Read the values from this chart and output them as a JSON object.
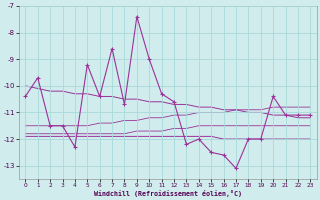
{
  "background_color": "#d0ecec",
  "grid_color": "#a8d8d8",
  "line_color": "#993399",
  "x_data": [
    0,
    1,
    2,
    3,
    4,
    5,
    6,
    7,
    8,
    9,
    10,
    11,
    12,
    13,
    14,
    15,
    16,
    17,
    18,
    19,
    20,
    21,
    22,
    23
  ],
  "y_main": [
    -10.4,
    -9.7,
    -11.5,
    -11.5,
    -12.3,
    -9.2,
    -10.4,
    -8.6,
    -10.7,
    -7.4,
    -9.0,
    -10.3,
    -10.6,
    -12.2,
    -12.0,
    -12.5,
    -12.6,
    -13.1,
    -12.0,
    -12.0,
    -10.4,
    -11.1,
    -11.1,
    -11.1
  ],
  "y_trend1": [
    -10.0,
    -10.1,
    -10.2,
    -10.2,
    -10.3,
    -10.3,
    -10.4,
    -10.4,
    -10.5,
    -10.5,
    -10.6,
    -10.6,
    -10.7,
    -10.7,
    -10.8,
    -10.8,
    -10.9,
    -10.9,
    -11.0,
    -11.0,
    -11.1,
    -11.1,
    -11.2,
    -11.2
  ],
  "y_trend2": [
    -11.9,
    -11.9,
    -11.9,
    -11.9,
    -11.9,
    -11.9,
    -11.9,
    -11.9,
    -11.9,
    -11.9,
    -11.9,
    -11.9,
    -11.9,
    -11.9,
    -11.9,
    -11.9,
    -12.0,
    -12.0,
    -12.0,
    -12.0,
    -12.0,
    -12.0,
    -12.0,
    -12.0
  ],
  "y_band1": [
    -11.5,
    -11.5,
    -11.5,
    -11.5,
    -11.5,
    -11.5,
    -11.4,
    -11.4,
    -11.3,
    -11.3,
    -11.2,
    -11.2,
    -11.1,
    -11.1,
    -11.0,
    -11.0,
    -11.0,
    -10.9,
    -10.9,
    -10.9,
    -10.8,
    -10.8,
    -10.8,
    -10.8
  ],
  "y_band2": [
    -11.8,
    -11.8,
    -11.8,
    -11.8,
    -11.8,
    -11.8,
    -11.8,
    -11.8,
    -11.8,
    -11.7,
    -11.7,
    -11.7,
    -11.6,
    -11.6,
    -11.5,
    -11.5,
    -11.5,
    -11.5,
    -11.5,
    -11.5,
    -11.5,
    -11.5,
    -11.5,
    -11.5
  ],
  "ylim": [
    -13.5,
    -7.0
  ],
  "yticks": [
    -13,
    -12,
    -11,
    -10,
    -9,
    -8,
    -7
  ],
  "xlim": [
    -0.5,
    23.5
  ],
  "xticks": [
    0,
    1,
    2,
    3,
    4,
    5,
    6,
    7,
    8,
    9,
    10,
    11,
    12,
    13,
    14,
    15,
    16,
    17,
    18,
    19,
    20,
    21,
    22,
    23
  ],
  "xlabel": "Windchill (Refroidissement éolien,°C)"
}
